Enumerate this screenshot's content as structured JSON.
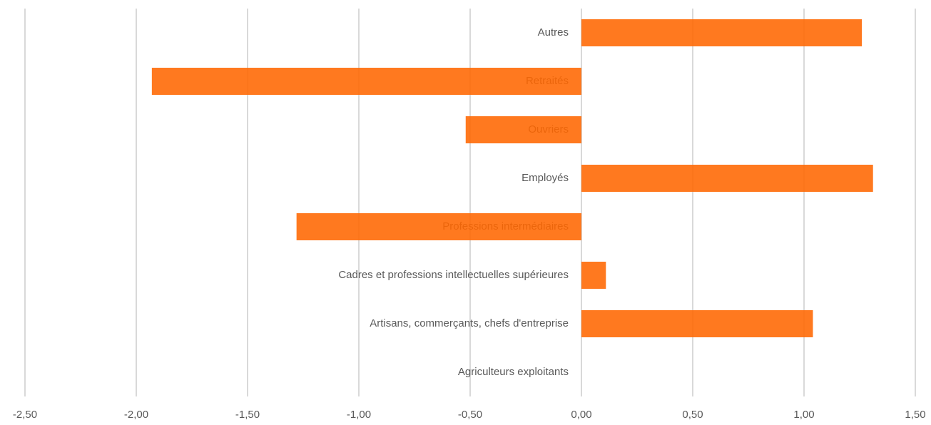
{
  "chart_data": {
    "type": "barh",
    "categories": [
      "Autres",
      "Retraités",
      "Ouvriers",
      "Employés",
      "Professions intermédiaires",
      "Cadres et professions intellectuelles supérieures",
      "Artisans, commerçants, chefs d'entreprise",
      "Agriculteurs exploitants"
    ],
    "values": [
      1.26,
      -1.93,
      -0.52,
      1.31,
      -1.28,
      0.11,
      1.04,
      0
    ],
    "color": "#ff6600",
    "xlim": [
      -2.5,
      1.5
    ],
    "xticks": [
      {
        "value": -2.5,
        "label": "-2,50"
      },
      {
        "value": -2,
        "label": "-2,00"
      },
      {
        "value": -1.5,
        "label": "-1,50"
      },
      {
        "value": -1,
        "label": "-1,00"
      },
      {
        "value": -0.5,
        "label": "-0,50"
      },
      {
        "value": 0,
        "label": "0,00"
      },
      {
        "value": 0.5,
        "label": "0,50"
      },
      {
        "value": 1,
        "label": "1,00"
      },
      {
        "value": 1.5,
        "label": "1,50"
      }
    ],
    "grid": true
  }
}
